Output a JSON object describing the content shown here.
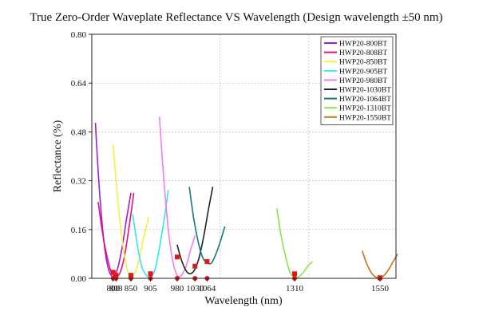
{
  "chart_data": {
    "type": "line",
    "title": "True Zero-Order Waveplate Reflectance VS Wavelength (Design wavelength ±50 nm)",
    "xlabel": "Wavelength (nm)",
    "ylabel": "Reflectance (%)",
    "xlim": [
      740,
      1595
    ],
    "ylim": [
      0,
      0.8
    ],
    "yticks": [
      "0.00",
      "0.16",
      "0.32",
      "0.48",
      "0.64",
      "0.80"
    ],
    "xticks": [
      "800",
      "808",
      "850",
      "905",
      "980",
      "1030",
      "1064",
      "1310",
      "1550"
    ],
    "xtick_values": [
      800,
      808,
      850,
      905,
      980,
      1030,
      1064,
      1310,
      1550
    ],
    "grid": true,
    "legend_position": "top-right",
    "series": [
      {
        "name": "HWP20-800BT",
        "color": "#9b1fd6",
        "x": [
          750,
          762,
          775,
          787,
          800,
          812,
          825,
          837,
          850
        ],
        "y": [
          0.51,
          0.28,
          0.11,
          0.03,
          0.005,
          0.03,
          0.1,
          0.19,
          0.28
        ]
      },
      {
        "name": "HWP20-808BT",
        "color": "#e8107a",
        "x": [
          758,
          770,
          783,
          795,
          808,
          820,
          833,
          845,
          858
        ],
        "y": [
          0.25,
          0.15,
          0.07,
          0.02,
          0.005,
          0.02,
          0.08,
          0.17,
          0.28
        ]
      },
      {
        "name": "HWP20-850BT",
        "color": "#f5ef4a",
        "x": [
          800,
          812,
          825,
          837,
          850,
          862,
          875,
          887,
          900
        ],
        "y": [
          0.44,
          0.27,
          0.13,
          0.04,
          0.005,
          0.02,
          0.07,
          0.14,
          0.2
        ]
      },
      {
        "name": "HWP20-905BT",
        "color": "#33e6ec",
        "x": [
          855,
          868,
          880,
          893,
          905,
          918,
          930,
          943,
          955
        ],
        "y": [
          0.21,
          0.11,
          0.04,
          0.01,
          0.005,
          0.03,
          0.1,
          0.19,
          0.29
        ]
      },
      {
        "name": "HWP20-980BT",
        "color": "#f07cf0",
        "x": [
          930,
          942,
          955,
          967,
          980,
          992,
          1005,
          1017,
          1030
        ],
        "y": [
          0.53,
          0.33,
          0.16,
          0.06,
          0.01,
          0.01,
          0.04,
          0.09,
          0.14
        ]
      },
      {
        "name": "HWP20-1030BT",
        "color": "#222222",
        "x": [
          980,
          992,
          1005,
          1017,
          1030,
          1042,
          1055,
          1067,
          1080
        ],
        "y": [
          0.11,
          0.06,
          0.025,
          0.015,
          0.03,
          0.07,
          0.14,
          0.22,
          0.3
        ]
      },
      {
        "name": "HWP20-1064BT",
        "color": "#0e7d7a",
        "x": [
          1014,
          1026,
          1039,
          1051,
          1064,
          1076,
          1089,
          1101,
          1114
        ],
        "y": [
          0.3,
          0.2,
          0.12,
          0.07,
          0.05,
          0.05,
          0.08,
          0.12,
          0.17
        ]
      },
      {
        "name": "HWP20-1310BT",
        "color": "#8fe24a",
        "x": [
          1260,
          1272,
          1285,
          1297,
          1310,
          1322,
          1335,
          1347,
          1360
        ],
        "y": [
          0.23,
          0.14,
          0.07,
          0.02,
          0.005,
          0.005,
          0.02,
          0.04,
          0.055
        ]
      },
      {
        "name": "HWP20-1550BT",
        "color": "#c8741a",
        "x": [
          1500,
          1512,
          1525,
          1537,
          1550,
          1562,
          1575,
          1587,
          1600
        ],
        "y": [
          0.09,
          0.05,
          0.02,
          0.005,
          0.002,
          0.01,
          0.03,
          0.055,
          0.08
        ]
      }
    ],
    "markers": {
      "color": "#e01818",
      "points": [
        {
          "x": 800,
          "y": 0.02
        },
        {
          "x": 808,
          "y": 0.01
        },
        {
          "x": 850,
          "y": 0.01
        },
        {
          "x": 905,
          "y": 0.015
        },
        {
          "x": 980,
          "y": 0.07
        },
        {
          "x": 1030,
          "y": 0.04
        },
        {
          "x": 1064,
          "y": 0.055
        },
        {
          "x": 1310,
          "y": 0.015
        },
        {
          "x": 1550,
          "y": 0.002
        }
      ]
    }
  }
}
